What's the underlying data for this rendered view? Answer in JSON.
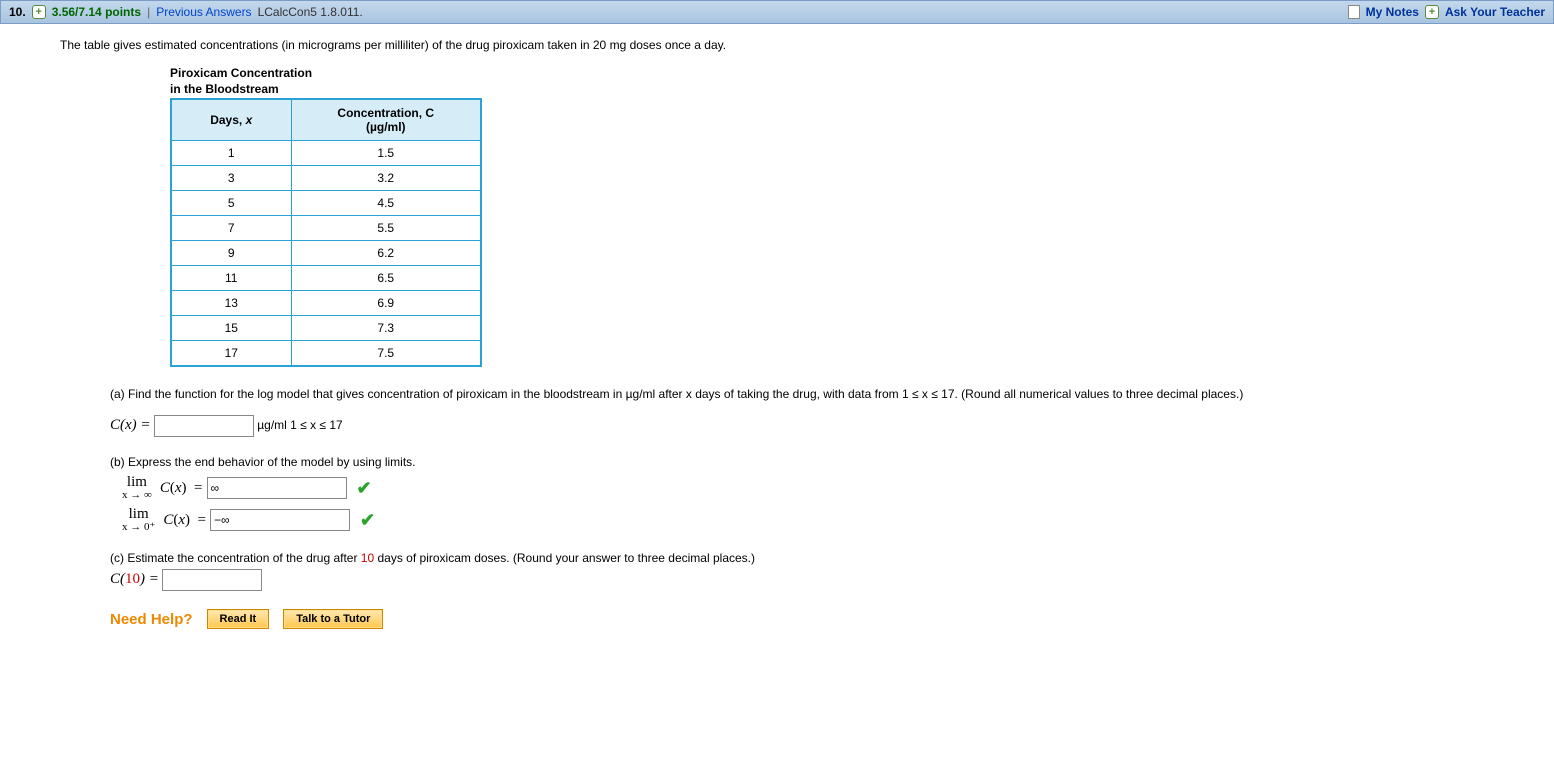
{
  "header": {
    "question_number": "10.",
    "points": "3.56/7.14 points",
    "prev_answers": "Previous Answers",
    "code": "LCalcCon5 1.8.011.",
    "my_notes": "My Notes",
    "ask_teacher": "Ask Your Teacher"
  },
  "prompt": "The table gives estimated concentrations (in micrograms per milliliter) of the drug piroxicam taken in 20 mg doses once a day.",
  "table": {
    "title_line1": "Piroxicam Concentration",
    "title_line2": "in the Bloodstream",
    "col1_header": "Days, x",
    "col2_header_line1": "Concentration, C",
    "col2_header_line2": "(µg/ml)",
    "rows": [
      {
        "x": "1",
        "c": "1.5"
      },
      {
        "x": "3",
        "c": "3.2"
      },
      {
        "x": "5",
        "c": "4.5"
      },
      {
        "x": "7",
        "c": "5.5"
      },
      {
        "x": "9",
        "c": "6.2"
      },
      {
        "x": "11",
        "c": "6.5"
      },
      {
        "x": "13",
        "c": "6.9"
      },
      {
        "x": "15",
        "c": "7.3"
      },
      {
        "x": "17",
        "c": "7.5"
      }
    ],
    "border_color": "#2aa3d4",
    "header_bg": "#d6edf7"
  },
  "parts": {
    "a": {
      "text": "(a) Find the function for the log model that gives concentration of piroxicam in the bloodstream in µg/ml after x days of taking the drug, with data from  1 ≤ x ≤ 17.  (Round all numerical values to three decimal places.)",
      "lhs": "C(x) =",
      "units": "µg/ml   1 ≤ x ≤ 17",
      "value": ""
    },
    "b": {
      "text": "(b) Express the end behavior of the model by using limits.",
      "lim1_top": "lim",
      "lim1_under": "x → ∞",
      "lim1_rhs": "C(x)  =",
      "lim1_value": "∞",
      "lim2_top": "lim",
      "lim2_under": "x → 0⁺",
      "lim2_rhs": "C(x)  =",
      "lim2_value": "−∞"
    },
    "c": {
      "text_before": "(c) Estimate the concentration of the drug after ",
      "red_value": "10",
      "text_after": " days of piroxicam doses. (Round your answer to three decimal places.)",
      "lhs_before": "C(",
      "lhs_red": "10",
      "lhs_after": ") =",
      "value": ""
    }
  },
  "help": {
    "label": "Need Help?",
    "read_it": "Read It",
    "talk_tutor": "Talk to a Tutor"
  },
  "colors": {
    "header_bg_top": "#c4d8ec",
    "header_bg_bottom": "#a8c4e0",
    "points_color": "#006600",
    "link_color": "#003399",
    "help_orange": "#ee8800"
  }
}
